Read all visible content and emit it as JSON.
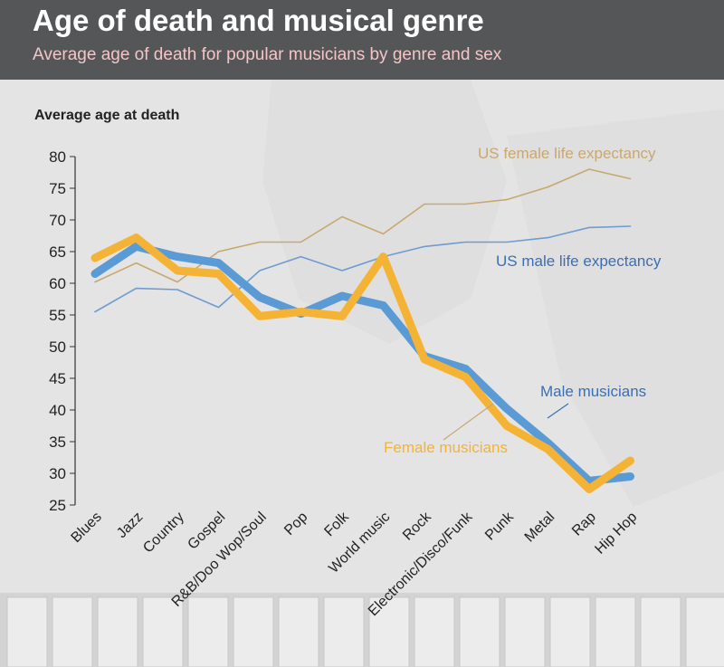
{
  "header": {
    "title": "Age of death and musical genre",
    "subtitle": "Average age of death for popular musicians by genre and sex"
  },
  "chart_data": {
    "type": "line",
    "ylabel": "Average age at death",
    "xlabel": "",
    "ylim": [
      25,
      80
    ],
    "yticks": [
      25,
      30,
      35,
      40,
      45,
      50,
      55,
      60,
      65,
      70,
      75,
      80
    ],
    "categories": [
      "Blues",
      "Jazz",
      "Country",
      "Gospel",
      "R&B/Doo Wop/Soul",
      "Pop",
      "Folk",
      "World music",
      "Rock",
      "Electronic/Disco/Funk",
      "Punk",
      "Metal",
      "Rap",
      "Hip Hop"
    ],
    "grid": false,
    "series": [
      {
        "name": "US female life expectancy",
        "color": "#c8a870",
        "weight": "thin",
        "values": [
          60.2,
          63.2,
          60.2,
          65.0,
          66.5,
          66.5,
          70.5,
          67.8,
          72.5,
          72.5,
          73.2,
          75.2,
          78.0,
          76.5
        ]
      },
      {
        "name": "US male life expectancy",
        "color": "#6f9bd1",
        "weight": "thin",
        "values": [
          55.5,
          59.2,
          59.0,
          56.2,
          62.0,
          64.2,
          62.0,
          64.2,
          65.8,
          66.5,
          66.5,
          67.2,
          68.8,
          69.0
        ]
      },
      {
        "name": "Male musicians",
        "color": "#5b9bd5",
        "weight": "thick",
        "values": [
          61.5,
          65.8,
          64.2,
          63.2,
          57.8,
          55.2,
          58.0,
          56.5,
          48.5,
          46.5,
          40.2,
          34.8,
          28.8,
          29.5
        ]
      },
      {
        "name": "Female musicians",
        "color": "#f5b335",
        "weight": "thick",
        "values": [
          64.0,
          67.2,
          62.0,
          61.5,
          54.8,
          55.5,
          54.8,
          64.2,
          48.0,
          45.2,
          37.5,
          33.8,
          27.5,
          32.0
        ]
      }
    ],
    "annotations": [
      {
        "text": "US female life expectancy",
        "color": "#c8a870"
      },
      {
        "text": "US male life expectancy",
        "color": "#3b6fb5"
      },
      {
        "text": "Male musicians",
        "color": "#3b6fb5"
      },
      {
        "text": "Female musicians",
        "color": "#f5b335"
      }
    ]
  }
}
